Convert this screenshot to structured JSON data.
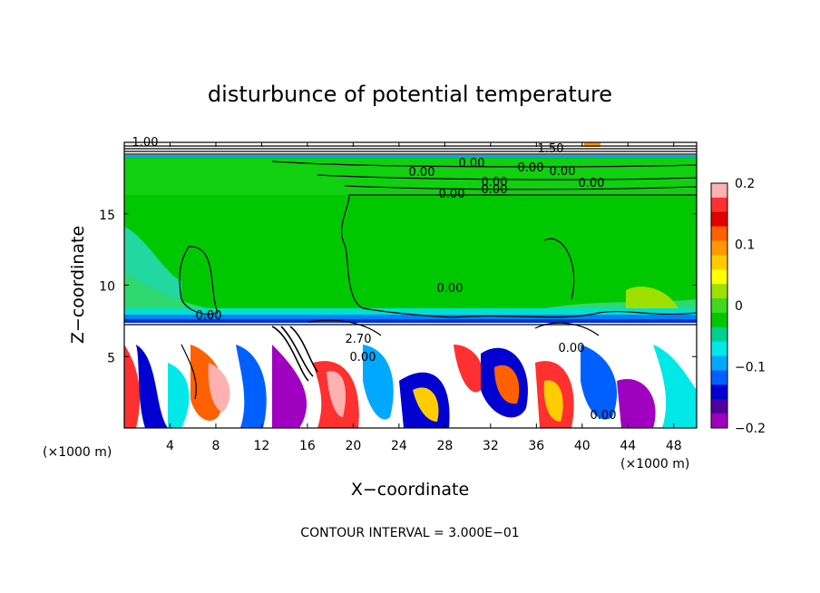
{
  "chart_data": {
    "type": "heatmap",
    "title": "disturbunce of potential temperature",
    "xlabel": "X−coordinate",
    "ylabel": "Z−coordinate",
    "x_unit": "(×1000 m)",
    "y_unit": "(×1000 m)",
    "xlim": [
      0,
      50
    ],
    "ylim": [
      0,
      20
    ],
    "x_ticks": [
      4,
      8,
      12,
      16,
      20,
      24,
      28,
      32,
      36,
      40,
      44,
      48
    ],
    "y_ticks": [
      5,
      10,
      15
    ],
    "colorbar": {
      "min": -0.2,
      "max": 0.2,
      "ticks": [
        "0.2",
        "0.1",
        "0",
        "−0.1",
        "−0.2"
      ],
      "colors": [
        "#ffb0b0",
        "#ff3030",
        "#e00000",
        "#ff6000",
        "#ff9900",
        "#ffcc00",
        "#ffff00",
        "#a0e000",
        "#40d820",
        "#00c800",
        "#00d090",
        "#00e8e8",
        "#00a8ff",
        "#0060ff",
        "#0000d0",
        "#5000a0",
        "#a000c0"
      ]
    },
    "contour_interval_text": "CONTOUR INTERVAL = 3.000E−01",
    "contour_labels": [
      "0.00",
      "0.00",
      "0.00",
      "0.00",
      "0.00",
      "0.00",
      "0.00",
      "0.00",
      "0.00",
      "0.00",
      "0.00",
      "0.00",
      "0.00",
      "1.50",
      "2.70",
      "1.00"
    ]
  }
}
